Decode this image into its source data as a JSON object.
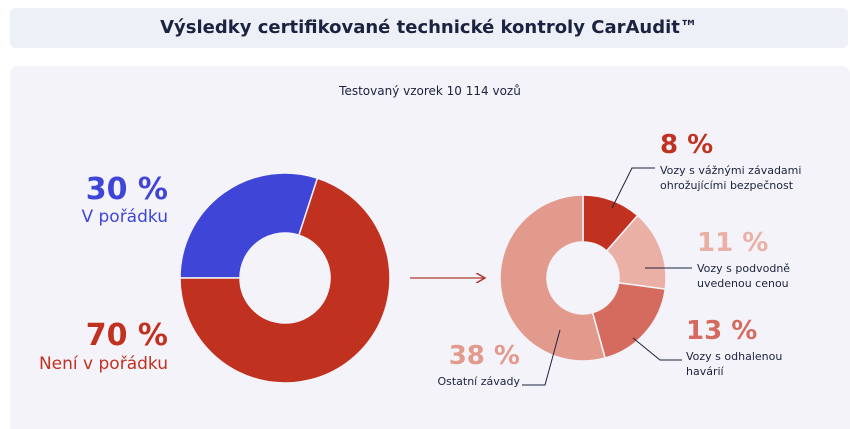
{
  "header": {
    "title": "Výsledky certifikované technické kontroly CarAudit™"
  },
  "subtitle": "Testovaný vzorek 10 114 vozů",
  "chart_data": [
    {
      "type": "donut",
      "categories": [
        "V pořádku",
        "Není v pořádku"
      ],
      "values": [
        30,
        70
      ],
      "value_labels": [
        "30 %",
        "70 %"
      ],
      "colors": [
        "#3f45d6",
        "#c0311f"
      ]
    },
    {
      "type": "donut",
      "categories": [
        "Vozy s vážnými závadami ohrožujícími bezpečnost",
        "Vozy s podvodně uvedenou cenou",
        "Vozy s odhalenou havárií",
        "Ostatní závady"
      ],
      "values": [
        8,
        11,
        13,
        38
      ],
      "value_labels": [
        "8 %",
        "11 %",
        "13 %",
        "38 %"
      ],
      "colors": [
        "#c0311f",
        "#eab0a5",
        "#d56b5e",
        "#e29a8c"
      ]
    }
  ]
}
